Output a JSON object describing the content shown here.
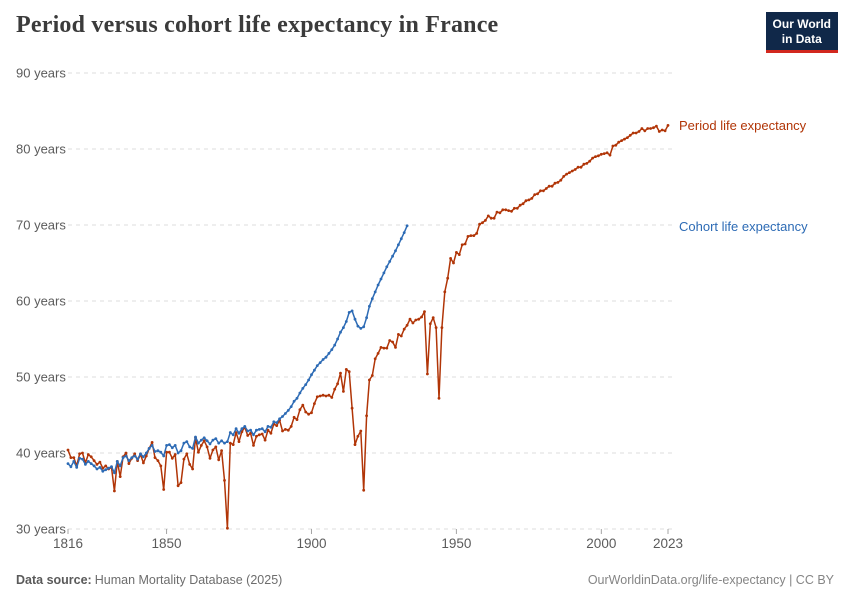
{
  "header": {
    "title": "Period versus cohort life expectancy in France",
    "logo_line1": "Our World",
    "logo_line2": "in Data"
  },
  "footer": {
    "source_label": "Data source:",
    "source_value": "Human Mortality Database (2025)",
    "right_text": "OurWorldinData.org/life-expectancy | CC BY"
  },
  "colors": {
    "period_series": "#b13507",
    "cohort_series": "#2d6bb5",
    "grid": "#dcdcdc",
    "tick_text": "#5b5b5b",
    "title_text": "#3b3b3b",
    "logo_bg": "#102849",
    "logo_accent": "#d2281e"
  },
  "chart_data": {
    "type": "line",
    "title": "Period versus cohort life expectancy in France",
    "xlabel": "",
    "ylabel": "",
    "xlim": [
      1816,
      2023
    ],
    "ylim": [
      30,
      90
    ],
    "x_ticks": [
      1816,
      1850,
      1900,
      1950,
      2000,
      2023
    ],
    "y_ticks": [
      30,
      40,
      50,
      60,
      70,
      80,
      90
    ],
    "y_tick_suffix": " years",
    "grid": "horizontal-dashed",
    "legend_position": "line-end-labels-right",
    "marker": "dot-every-year",
    "series": [
      {
        "name": "Period life expectancy",
        "color": "#b13507",
        "start_year": 1816,
        "end_year": 2023,
        "values": [
          40.4,
          39.4,
          39.4,
          38.3,
          39.9,
          40.0,
          38.7,
          39.8,
          39.5,
          39.0,
          38.5,
          38.8,
          38.0,
          38.3,
          37.9,
          38.1,
          35.0,
          38.9,
          36.9,
          39.5,
          40.0,
          38.6,
          39.3,
          39.9,
          39.0,
          39.8,
          38.7,
          39.6,
          40.6,
          41.4,
          39.4,
          39.0,
          38.3,
          35.2,
          40.1,
          40.1,
          39.3,
          39.8,
          35.7,
          36.1,
          39.2,
          39.9,
          38.5,
          37.9,
          42.0,
          40.1,
          41.0,
          41.6,
          40.8,
          39.3,
          40.4,
          40.8,
          39.1,
          40.3,
          36.4,
          30.1,
          41.3,
          41.1,
          42.7,
          41.5,
          42.8,
          43.4,
          42.3,
          42.6,
          41.0,
          42.2,
          42.4,
          42.5,
          41.7,
          43.0,
          42.6,
          43.8,
          43.6,
          44.3,
          42.9,
          43.1,
          43.0,
          43.5,
          44.7,
          44.4,
          45.7,
          46.3,
          45.4,
          45.1,
          45.3,
          46.5,
          47.4,
          47.5,
          47.6,
          47.5,
          47.6,
          47.3,
          48.4,
          49.1,
          50.5,
          48.1,
          51.0,
          50.7,
          45.9,
          41.1,
          42.2,
          42.9,
          35.1,
          44.9,
          49.6,
          50.2,
          52.4,
          53.1,
          53.9,
          53.8,
          53.8,
          54.8,
          54.6,
          53.9,
          55.6,
          55.4,
          56.3,
          56.8,
          57.6,
          57.1,
          57.5,
          57.6,
          57.9,
          58.6,
          50.4,
          57.0,
          57.8,
          56.5,
          47.2,
          56.5,
          61.2,
          63.0,
          65.6,
          65.0,
          66.4,
          66.1,
          67.4,
          67.5,
          68.5,
          68.6,
          68.6,
          68.9,
          70.1,
          70.3,
          70.6,
          71.2,
          70.9,
          70.9,
          71.7,
          71.6,
          72.0,
          72.0,
          71.9,
          71.8,
          72.2,
          72.2,
          72.6,
          72.8,
          73.2,
          73.3,
          73.5,
          74.0,
          74.1,
          74.5,
          74.5,
          74.8,
          75.1,
          75.1,
          75.5,
          75.6,
          75.9,
          76.4,
          76.7,
          76.9,
          77.1,
          77.3,
          77.6,
          77.6,
          78.0,
          78.1,
          78.4,
          78.8,
          79.0,
          79.1,
          79.3,
          79.4,
          79.5,
          79.2,
          80.4,
          80.5,
          80.9,
          81.1,
          81.3,
          81.5,
          81.8,
          82.1,
          82.1,
          82.3,
          82.7,
          82.4,
          82.7,
          82.7,
          82.8,
          83.0,
          82.3,
          82.5,
          82.4,
          83.1
        ]
      },
      {
        "name": "Cohort life expectancy",
        "color": "#2d6bb5",
        "start_year": 1816,
        "end_year": 1933,
        "values": [
          38.6,
          38.2,
          38.9,
          38.1,
          39.3,
          39.2,
          38.5,
          38.9,
          38.6,
          38.3,
          37.9,
          38.1,
          37.6,
          37.8,
          38.0,
          38.2,
          37.4,
          38.9,
          38.3,
          39.4,
          39.6,
          39.0,
          39.4,
          39.6,
          39.2,
          39.9,
          39.5,
          40.0,
          40.6,
          41.0,
          40.2,
          40.3,
          40.1,
          39.6,
          41.0,
          41.1,
          40.7,
          41.0,
          40.0,
          40.3,
          41.3,
          41.5,
          40.8,
          40.6,
          42.1,
          41.3,
          41.7,
          42.0,
          41.6,
          41.2,
          41.7,
          41.9,
          41.3,
          41.6,
          41.3,
          41.5,
          42.7,
          42.4,
          43.2,
          42.6,
          43.2,
          43.5,
          42.9,
          43.0,
          42.4,
          43.0,
          43.1,
          43.2,
          42.8,
          43.5,
          43.4,
          44.1,
          44.0,
          44.5,
          44.8,
          45.2,
          45.6,
          46.1,
          46.8,
          47.2,
          47.9,
          48.5,
          49.0,
          49.6,
          50.3,
          50.9,
          51.5,
          51.9,
          52.3,
          52.6,
          53.1,
          53.6,
          54.2,
          55.0,
          55.9,
          56.5,
          57.3,
          58.5,
          58.7,
          57.6,
          56.7,
          56.4,
          56.6,
          57.8,
          59.3,
          60.3,
          61.2,
          62.1,
          62.9,
          63.7,
          64.5,
          65.2,
          65.9,
          66.6,
          67.4,
          68.2,
          69.0,
          69.9
        ]
      }
    ]
  }
}
